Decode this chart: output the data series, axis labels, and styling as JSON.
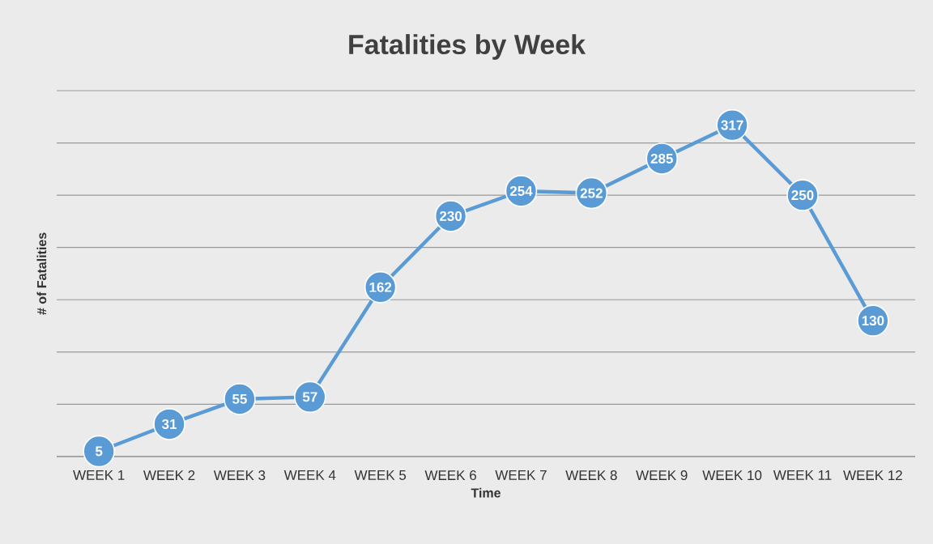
{
  "chart_data": {
    "type": "line",
    "title": "Fatalities by Week",
    "xlabel": "Time",
    "ylabel": "# of Fatalities",
    "categories": [
      "WEEK 1",
      "WEEK 2",
      "WEEK 3",
      "WEEK 4",
      "WEEK 5",
      "WEEK 6",
      "WEEK 7",
      "WEEK 8",
      "WEEK 9",
      "WEEK 10",
      "WEEK 11",
      "WEEK 12"
    ],
    "values": [
      5,
      31,
      55,
      57,
      162,
      230,
      254,
      252,
      285,
      317,
      250,
      130
    ],
    "color": "#5b9bd5",
    "ylim": [
      0,
      350
    ],
    "yticks": [
      {
        "value": 0,
        "label": null
      },
      {
        "value": 50,
        "label": null
      },
      {
        "value": 100,
        "label": null
      },
      {
        "value": 150,
        "label": null
      },
      {
        "value": 200,
        "label": null
      },
      {
        "value": 250,
        "label": null
      },
      {
        "value": 300,
        "label": null
      },
      {
        "value": 350,
        "label": null
      }
    ],
    "grid": "y",
    "tick_labels": "x",
    "marker": "circle",
    "line_style": "solid",
    "data_labels": true
  }
}
